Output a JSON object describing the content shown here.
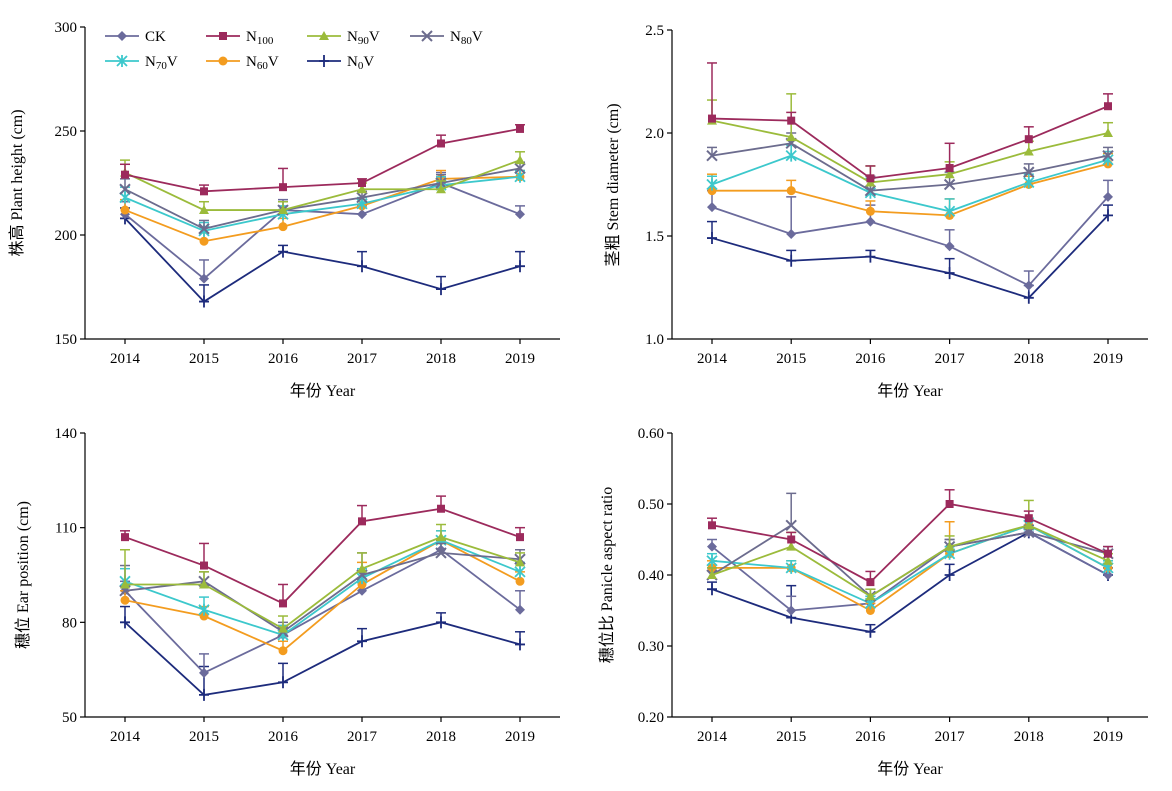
{
  "colors": {
    "CK": "#6b6b9c",
    "N100": "#9c2a5c",
    "N90V": "#9bbb3b",
    "N80V": "#6c6c8e",
    "N70V": "#3cc8cc",
    "N60V": "#f39c1f",
    "N0V": "#1d2b7c"
  },
  "legend": [
    {
      "key": "CK",
      "base": "CK",
      "sub": "",
      "suffix": "",
      "marker": "diamond"
    },
    {
      "key": "N100",
      "base": "N",
      "sub": "100",
      "suffix": "",
      "marker": "square"
    },
    {
      "key": "N90V",
      "base": "N",
      "sub": "90",
      "suffix": "V",
      "marker": "triangle"
    },
    {
      "key": "N80V",
      "base": "N",
      "sub": "80",
      "suffix": "V",
      "marker": "x"
    },
    {
      "key": "N70V",
      "base": "N",
      "sub": "70",
      "suffix": "V",
      "marker": "asterisk"
    },
    {
      "key": "N60V",
      "base": "N",
      "sub": "60",
      "suffix": "V",
      "marker": "circle"
    },
    {
      "key": "N0V",
      "base": "N",
      "sub": "0",
      "suffix": "V",
      "marker": "plus"
    }
  ],
  "chart_data": [
    {
      "type": "line",
      "title": "",
      "ylabel": "株高 Plant height (cm)",
      "xlabel": "年份 Year",
      "categories": [
        "2014",
        "2015",
        "2016",
        "2017",
        "2018",
        "2019"
      ],
      "ylim": [
        150,
        300
      ],
      "yticks": [
        "150",
        "200",
        "250",
        "300"
      ],
      "series": [
        {
          "key": "CK",
          "values": [
            210,
            179,
            212,
            210,
            225,
            210
          ],
          "err": [
            6,
            9,
            5,
            4,
            5,
            4
          ]
        },
        {
          "key": "N100",
          "values": [
            229,
            221,
            223,
            225,
            244,
            251
          ],
          "err": [
            5,
            3,
            9,
            2,
            4,
            2
          ]
        },
        {
          "key": "N90V",
          "values": [
            230,
            212,
            212,
            222,
            222,
            236
          ],
          "err": [
            6,
            4,
            4,
            3,
            4,
            4
          ]
        },
        {
          "key": "N80V",
          "values": [
            222,
            203,
            212,
            218,
            225,
            232
          ],
          "err": [
            5,
            4,
            4,
            3,
            4,
            3
          ]
        },
        {
          "key": "N70V",
          "values": [
            218,
            202,
            210,
            215,
            224,
            228
          ],
          "err": [
            5,
            4,
            4,
            3,
            4,
            3
          ]
        },
        {
          "key": "N60V",
          "values": [
            212,
            197,
            204,
            214,
            227,
            228
          ],
          "err": [
            5,
            4,
            4,
            3,
            4,
            3
          ]
        },
        {
          "key": "N0V",
          "values": [
            208,
            168,
            192,
            185,
            174,
            185
          ],
          "err": [
            5,
            8,
            3,
            7,
            6,
            7
          ]
        }
      ]
    },
    {
      "type": "line",
      "title": "",
      "ylabel": "茎粗 Stem diameter (cm)",
      "xlabel": "年份 Year",
      "categories": [
        "2014",
        "2015",
        "2016",
        "2017",
        "2018",
        "2019"
      ],
      "ylim": [
        1.0,
        2.5
      ],
      "yticks": [
        "1.0",
        "1.5",
        "2.0",
        "2.5"
      ],
      "series": [
        {
          "key": "CK",
          "values": [
            1.64,
            1.51,
            1.57,
            1.45,
            1.26,
            1.69
          ],
          "err": [
            0.08,
            0.18,
            0.08,
            0.08,
            0.07,
            0.08
          ]
        },
        {
          "key": "N100",
          "values": [
            2.07,
            2.06,
            1.78,
            1.83,
            1.97,
            2.13
          ],
          "err": [
            0.27,
            0.04,
            0.06,
            0.12,
            0.06,
            0.06
          ]
        },
        {
          "key": "N90V",
          "values": [
            2.06,
            1.98,
            1.76,
            1.8,
            1.91,
            2.0
          ],
          "err": [
            0.1,
            0.21,
            0.08,
            0.06,
            0.05,
            0.05
          ]
        },
        {
          "key": "N80V",
          "values": [
            1.89,
            1.95,
            1.72,
            1.75,
            1.81,
            1.89
          ],
          "err": [
            0.04,
            0.05,
            0.07,
            0.06,
            0.04,
            0.04
          ]
        },
        {
          "key": "N70V",
          "values": [
            1.75,
            1.89,
            1.71,
            1.62,
            1.76,
            1.87
          ],
          "err": [
            0.04,
            0.05,
            0.07,
            0.06,
            0.04,
            0.04
          ]
        },
        {
          "key": "N60V",
          "values": [
            1.72,
            1.72,
            1.62,
            1.6,
            1.75,
            1.85
          ],
          "err": [
            0.08,
            0.05,
            0.05,
            0.08,
            0.04,
            0.05
          ]
        },
        {
          "key": "N0V",
          "values": [
            1.49,
            1.38,
            1.4,
            1.32,
            1.2,
            1.6
          ],
          "err": [
            0.08,
            0.05,
            0.03,
            0.07,
            0.06,
            0.05
          ]
        }
      ]
    },
    {
      "type": "line",
      "title": "",
      "ylabel": "穗位 Ear position (cm)",
      "xlabel": "年份 Year",
      "categories": [
        "2014",
        "2015",
        "2016",
        "2017",
        "2018",
        "2019"
      ],
      "ylim": [
        50,
        140
      ],
      "yticks": [
        "50",
        "80",
        "110",
        "140"
      ],
      "series": [
        {
          "key": "CK",
          "values": [
            90,
            64,
            76,
            90,
            103,
            84
          ],
          "err": [
            3,
            6,
            3,
            3,
            3,
            6
          ]
        },
        {
          "key": "N100",
          "values": [
            107,
            98,
            86,
            112,
            116,
            107
          ],
          "err": [
            2,
            7,
            6,
            5,
            4,
            3
          ]
        },
        {
          "key": "N90V",
          "values": [
            92,
            92,
            78,
            97,
            107,
            99
          ],
          "err": [
            11,
            4,
            4,
            5,
            4,
            3
          ]
        },
        {
          "key": "N80V",
          "values": [
            90,
            93,
            77,
            95,
            102,
            100
          ],
          "err": [
            8,
            3,
            3,
            7,
            3,
            3
          ]
        },
        {
          "key": "N70V",
          "values": [
            93,
            84,
            76,
            94,
            106,
            96
          ],
          "err": [
            4,
            4,
            3,
            3,
            3,
            3
          ]
        },
        {
          "key": "N60V",
          "values": [
            87,
            82,
            71,
            92,
            106,
            93
          ],
          "err": [
            3,
            3,
            3,
            7,
            3,
            3
          ]
        },
        {
          "key": "N0V",
          "values": [
            80,
            57,
            61,
            74,
            80,
            73
          ],
          "err": [
            5,
            9,
            6,
            4,
            3,
            4
          ]
        }
      ]
    },
    {
      "type": "line",
      "title": "",
      "ylabel": "穗位比 Panicle aspect ratio",
      "xlabel": "年份 Year",
      "categories": [
        "2014",
        "2015",
        "2016",
        "2017",
        "2018",
        "2019"
      ],
      "ylim": [
        0.2,
        0.6
      ],
      "yticks": [
        "0.20",
        "0.30",
        "0.40",
        "0.50",
        "0.60"
      ],
      "series": [
        {
          "key": "CK",
          "values": [
            0.44,
            0.35,
            0.36,
            0.44,
            0.46,
            0.4
          ],
          "err": [
            0.01,
            0.02,
            0.01,
            0.01,
            0.01,
            0.01
          ]
        },
        {
          "key": "N100",
          "values": [
            0.47,
            0.45,
            0.39,
            0.5,
            0.48,
            0.43
          ],
          "err": [
            0.01,
            0.01,
            0.015,
            0.02,
            0.01,
            0.01
          ]
        },
        {
          "key": "N90V",
          "values": [
            0.4,
            0.44,
            0.37,
            0.44,
            0.47,
            0.42
          ],
          "err": [
            0.01,
            0.02,
            0.01,
            0.015,
            0.035,
            0.01
          ]
        },
        {
          "key": "N80V",
          "values": [
            0.4,
            0.47,
            0.37,
            0.44,
            0.46,
            0.43
          ],
          "err": [
            0.01,
            0.045,
            0.01,
            0.01,
            0.01,
            0.01
          ]
        },
        {
          "key": "N70V",
          "values": [
            0.42,
            0.41,
            0.36,
            0.43,
            0.47,
            0.41
          ],
          "err": [
            0.01,
            0.01,
            0.01,
            0.01,
            0.01,
            0.01
          ]
        },
        {
          "key": "N60V",
          "values": [
            0.41,
            0.41,
            0.35,
            0.43,
            0.47,
            0.41
          ],
          "err": [
            0.01,
            0.01,
            0.01,
            0.045,
            0.01,
            0.01
          ]
        },
        {
          "key": "N0V",
          "values": [
            0.38,
            0.34,
            0.32,
            0.4,
            0.46,
            0.4
          ],
          "err": [
            0.01,
            0.045,
            0.01,
            0.015,
            0.01,
            0.01
          ]
        }
      ]
    }
  ]
}
